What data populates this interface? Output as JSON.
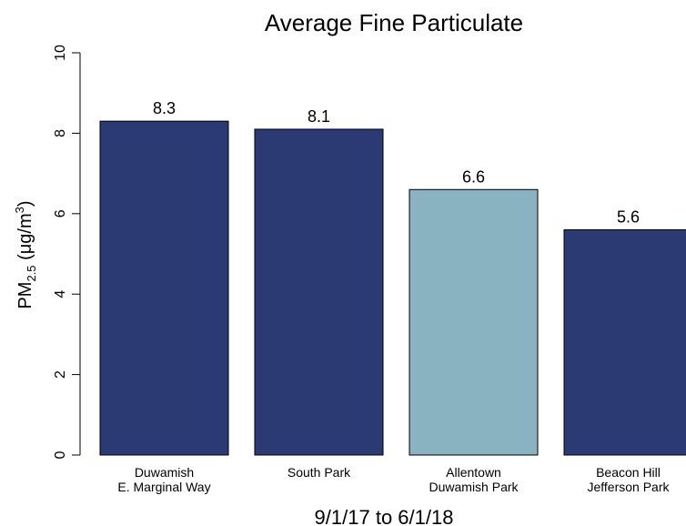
{
  "chart_data": {
    "type": "bar",
    "title": "Average Fine Particulate",
    "xlabel": "9/1/17 to 6/1/18",
    "ylabel": {
      "main": "PM",
      "subscript": "2.5",
      "units_prefix": " (μg/m",
      "superscript": "3",
      "units_suffix": ")"
    },
    "ylim": [
      0,
      10
    ],
    "yticks": [
      "0",
      "2",
      "4",
      "6",
      "8",
      "10"
    ],
    "categories": [
      [
        "Duwamish",
        "E. Marginal Way"
      ],
      [
        "South Park"
      ],
      [
        "Allentown",
        "Duwamish Park"
      ],
      [
        "Beacon Hill",
        "Jefferson Park"
      ]
    ],
    "values": [
      8.3,
      8.1,
      6.6,
      5.6
    ],
    "value_labels": [
      "8.3",
      "8.1",
      "6.6",
      "5.6"
    ],
    "bar_colors": [
      "#2c3a73",
      "#2c3a73",
      "#8ab3c1",
      "#2c3a73"
    ],
    "grid": false,
    "legend": "none"
  }
}
